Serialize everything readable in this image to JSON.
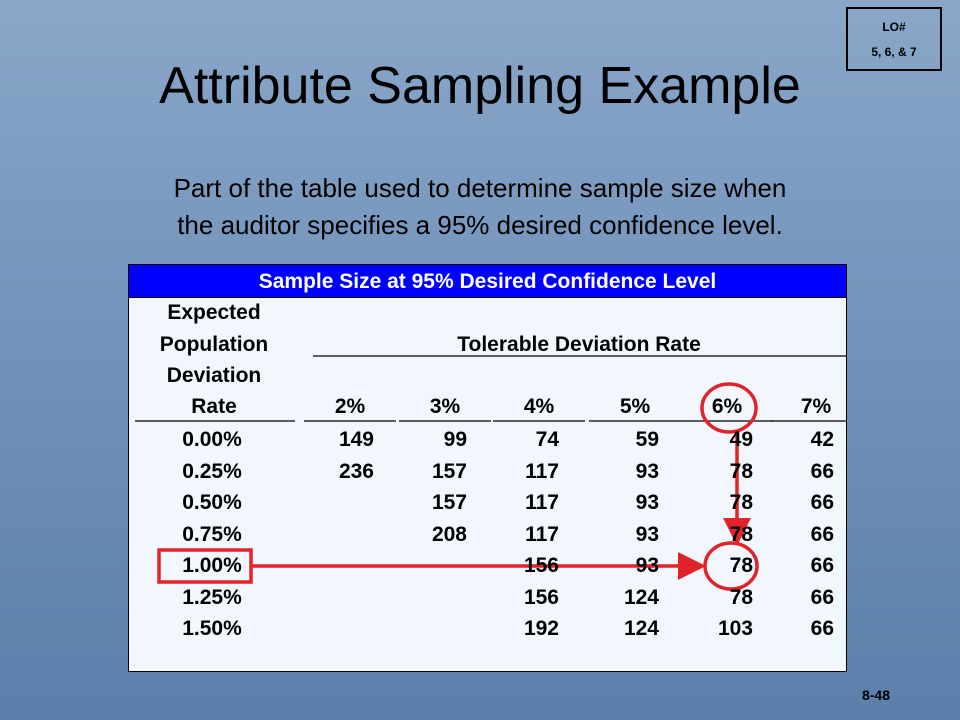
{
  "lo_badge": {
    "line1": "LO#",
    "line2": "5, 6, & 7"
  },
  "title": "Attribute Sampling Example",
  "subtitle_line1": "Part of the table used to determine sample size when",
  "subtitle_line2": "the auditor specifies a 95% desired confidence level.",
  "table": {
    "title": "Sample Size at 95% Desired Confidence Level",
    "row_header_lines": [
      "Expected",
      "Population",
      "Deviation",
      "Rate"
    ],
    "column_group_header": "Tolerable Deviation Rate",
    "columns": [
      "2%",
      "3%",
      "4%",
      "5%",
      "6%",
      "7%"
    ],
    "rows": [
      {
        "rate": "0.00%",
        "values": [
          "149",
          "99",
          "74",
          "59",
          "49",
          "42"
        ]
      },
      {
        "rate": "0.25%",
        "values": [
          "236",
          "157",
          "117",
          "93",
          "78",
          "66"
        ]
      },
      {
        "rate": "0.50%",
        "values": [
          "",
          "157",
          "117",
          "93",
          "78",
          "66"
        ]
      },
      {
        "rate": "0.75%",
        "values": [
          "",
          "208",
          "117",
          "93",
          "78",
          "66"
        ]
      },
      {
        "rate": "1.00%",
        "values": [
          "",
          "",
          "156",
          "93",
          "78",
          "66"
        ]
      },
      {
        "rate": "1.25%",
        "values": [
          "",
          "",
          "156",
          "124",
          "78",
          "66"
        ]
      },
      {
        "rate": "1.50%",
        "values": [
          "",
          "",
          "192",
          "124",
          "103",
          "66"
        ]
      }
    ],
    "highlight": {
      "column": "6%",
      "row": "1.00%",
      "value": "78"
    }
  },
  "page_number": "8-48",
  "colors": {
    "title_bar": "#0000ff",
    "highlight": "#e0242a"
  }
}
